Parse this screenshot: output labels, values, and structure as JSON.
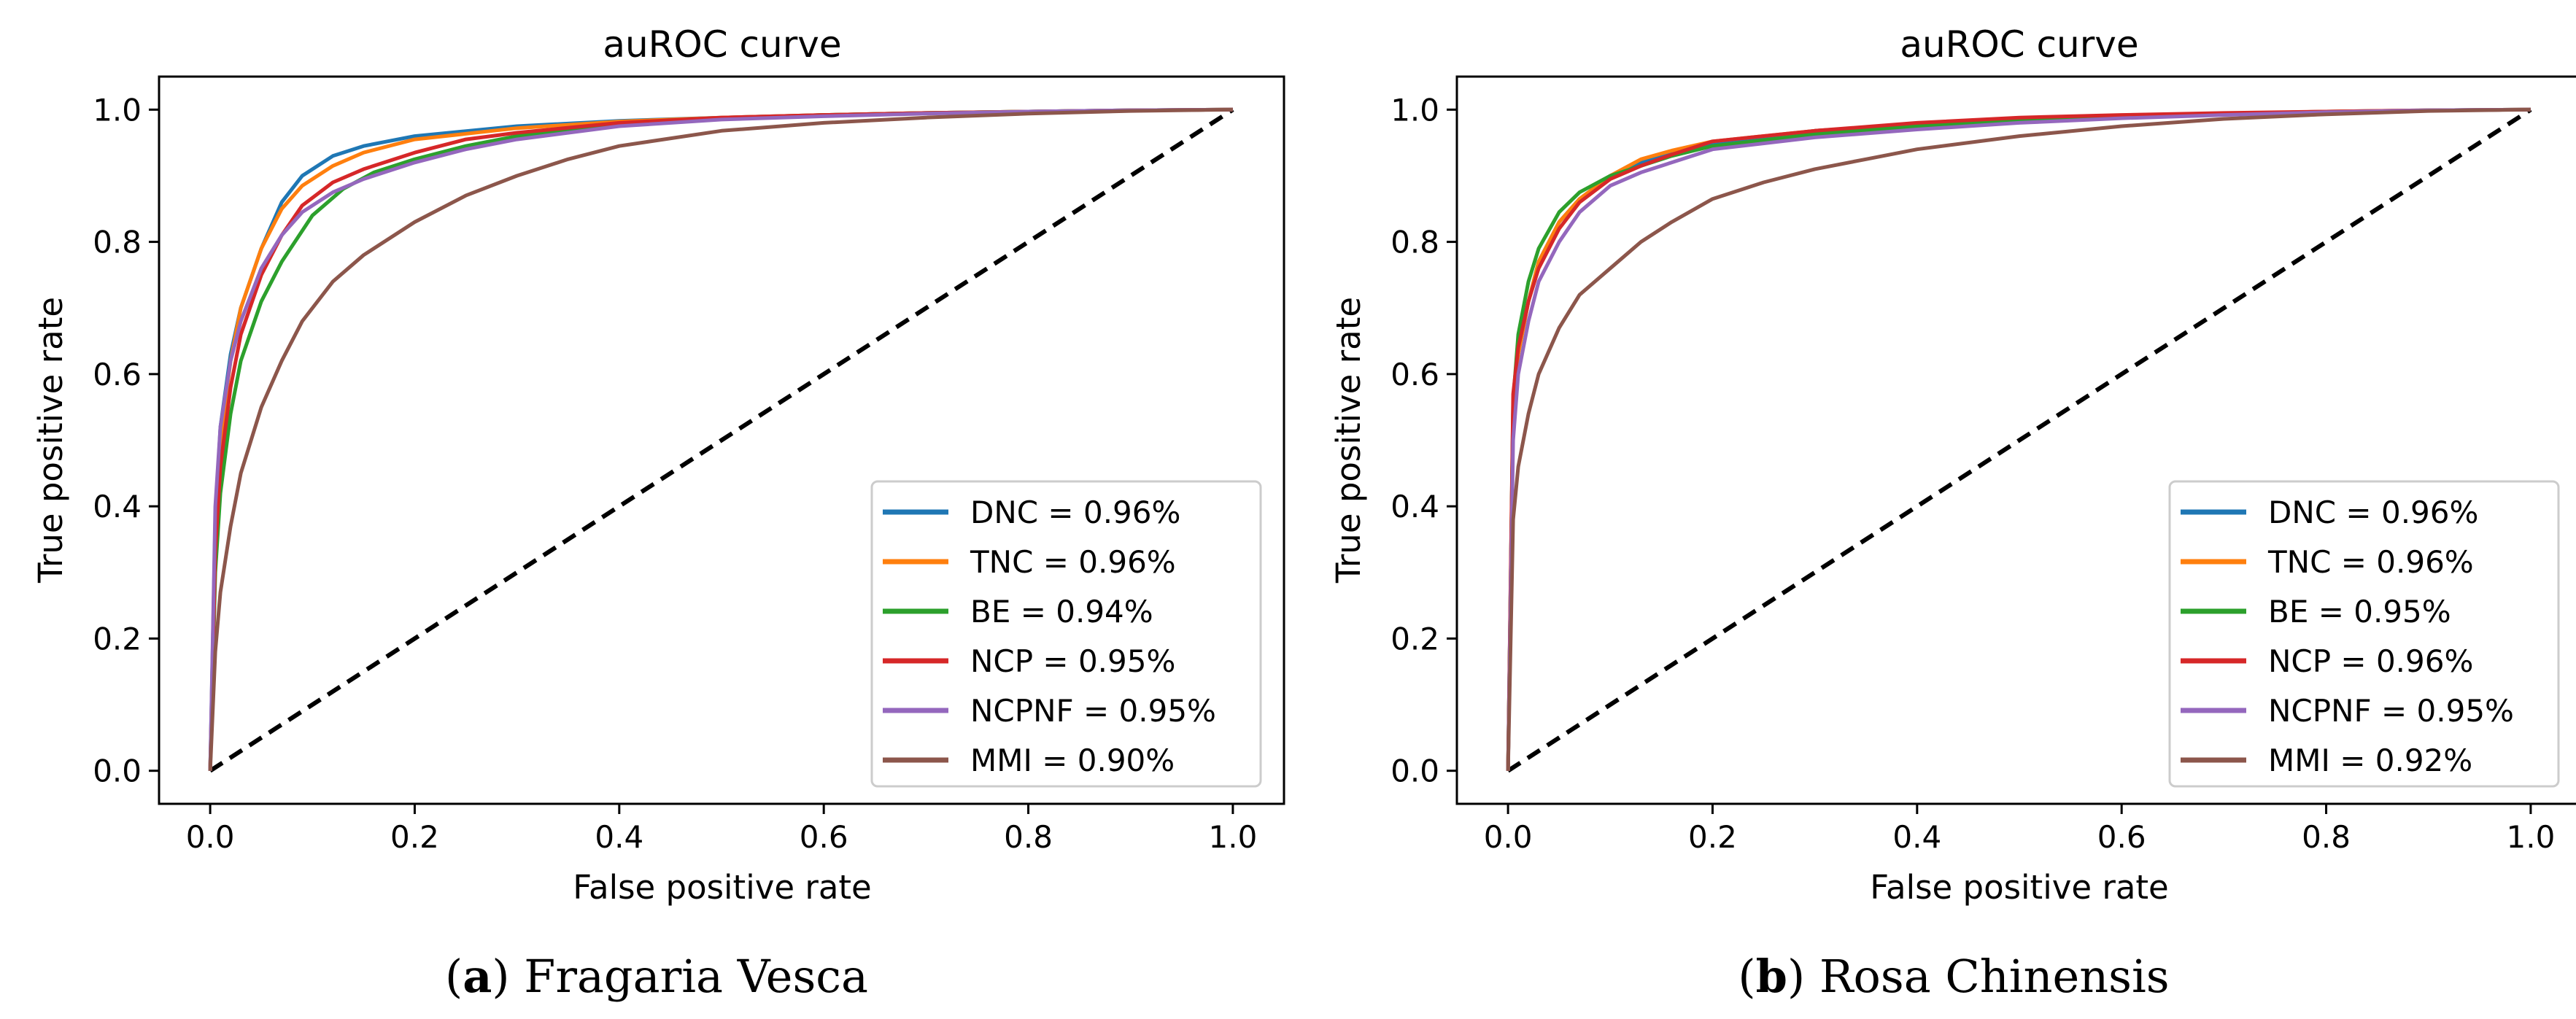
{
  "chart_data": [
    {
      "type": "line",
      "caption_letter": "a",
      "caption_text": "Fragaria Vesca",
      "title": "auROC curve",
      "xlabel": "False positive rate",
      "ylabel": "True positive rate",
      "xlim": [
        -0.05,
        1.05
      ],
      "ylim": [
        -0.05,
        1.05
      ],
      "xticks": [
        "0.0",
        "0.2",
        "0.4",
        "0.6",
        "0.8",
        "1.0"
      ],
      "yticks": [
        "0.0",
        "0.2",
        "0.4",
        "0.6",
        "0.8",
        "1.0"
      ],
      "legend_position": "lower-right",
      "diagonal": {
        "x": [
          0,
          1
        ],
        "y": [
          0,
          1
        ],
        "style": "dashed",
        "color": "#000000"
      },
      "series": [
        {
          "name": "DNC",
          "label": "DNC = 0.96%",
          "color": "#1f77b4",
          "x": [
            0,
            0.005,
            0.01,
            0.02,
            0.03,
            0.05,
            0.07,
            0.09,
            0.12,
            0.15,
            0.2,
            0.3,
            0.4,
            0.5,
            0.6,
            0.7,
            0.8,
            0.9,
            1.0
          ],
          "y": [
            0,
            0.38,
            0.52,
            0.63,
            0.7,
            0.79,
            0.86,
            0.9,
            0.93,
            0.945,
            0.96,
            0.975,
            0.983,
            0.988,
            0.992,
            0.995,
            0.997,
            0.999,
            1.0
          ]
        },
        {
          "name": "TNC",
          "label": "TNC = 0.96%",
          "color": "#ff7f0e",
          "x": [
            0,
            0.005,
            0.01,
            0.02,
            0.03,
            0.05,
            0.07,
            0.09,
            0.12,
            0.15,
            0.2,
            0.3,
            0.4,
            0.5,
            0.6,
            0.7,
            0.8,
            0.9,
            1.0
          ],
          "y": [
            0,
            0.36,
            0.5,
            0.62,
            0.7,
            0.79,
            0.85,
            0.885,
            0.915,
            0.935,
            0.955,
            0.972,
            0.982,
            0.988,
            0.992,
            0.995,
            0.997,
            0.999,
            1.0
          ]
        },
        {
          "name": "BE",
          "label": "BE = 0.94%",
          "color": "#2ca02c",
          "x": [
            0,
            0.005,
            0.01,
            0.02,
            0.03,
            0.05,
            0.07,
            0.1,
            0.13,
            0.16,
            0.2,
            0.25,
            0.3,
            0.4,
            0.5,
            0.6,
            0.7,
            0.8,
            0.9,
            1.0
          ],
          "y": [
            0,
            0.3,
            0.42,
            0.54,
            0.62,
            0.71,
            0.77,
            0.84,
            0.88,
            0.905,
            0.925,
            0.945,
            0.96,
            0.978,
            0.987,
            0.992,
            0.995,
            0.997,
            0.999,
            1.0
          ]
        },
        {
          "name": "NCP",
          "label": "NCP = 0.95%",
          "color": "#d62728",
          "x": [
            0,
            0.005,
            0.01,
            0.02,
            0.03,
            0.05,
            0.07,
            0.09,
            0.12,
            0.15,
            0.2,
            0.25,
            0.3,
            0.4,
            0.5,
            0.6,
            0.7,
            0.8,
            0.9,
            1.0
          ],
          "y": [
            0,
            0.33,
            0.46,
            0.58,
            0.66,
            0.75,
            0.81,
            0.855,
            0.89,
            0.91,
            0.935,
            0.955,
            0.965,
            0.98,
            0.988,
            0.992,
            0.995,
            0.997,
            0.999,
            1.0
          ]
        },
        {
          "name": "NCPNF",
          "label": "NCPNF = 0.95%",
          "color": "#9467bd",
          "x": [
            0,
            0.005,
            0.01,
            0.02,
            0.03,
            0.05,
            0.07,
            0.09,
            0.12,
            0.15,
            0.2,
            0.25,
            0.3,
            0.4,
            0.5,
            0.6,
            0.7,
            0.8,
            0.9,
            1.0
          ],
          "y": [
            0,
            0.4,
            0.52,
            0.62,
            0.68,
            0.76,
            0.81,
            0.845,
            0.875,
            0.895,
            0.92,
            0.94,
            0.955,
            0.975,
            0.985,
            0.99,
            0.994,
            0.997,
            0.999,
            1.0
          ]
        },
        {
          "name": "MMI",
          "label": "MMI = 0.90%",
          "color": "#8c564b",
          "x": [
            0,
            0.005,
            0.01,
            0.02,
            0.03,
            0.05,
            0.07,
            0.09,
            0.12,
            0.15,
            0.2,
            0.25,
            0.3,
            0.35,
            0.4,
            0.5,
            0.6,
            0.7,
            0.8,
            0.9,
            1.0
          ],
          "y": [
            0,
            0.18,
            0.27,
            0.37,
            0.45,
            0.55,
            0.62,
            0.68,
            0.74,
            0.78,
            0.83,
            0.87,
            0.9,
            0.925,
            0.945,
            0.968,
            0.98,
            0.988,
            0.994,
            0.998,
            1.0
          ]
        }
      ]
    },
    {
      "type": "line",
      "caption_letter": "b",
      "caption_text": "Rosa Chinensis",
      "title": "auROC curve",
      "xlabel": "False positive rate",
      "ylabel": "True positive rate",
      "xlim": [
        -0.05,
        1.05
      ],
      "ylim": [
        -0.05,
        1.05
      ],
      "xticks": [
        "0.0",
        "0.2",
        "0.4",
        "0.6",
        "0.8",
        "1.0"
      ],
      "yticks": [
        "0.0",
        "0.2",
        "0.4",
        "0.6",
        "0.8",
        "1.0"
      ],
      "legend_position": "lower-right",
      "diagonal": {
        "x": [
          0,
          1
        ],
        "y": [
          0,
          1
        ],
        "style": "dashed",
        "color": "#000000"
      },
      "series": [
        {
          "name": "DNC",
          "label": "DNC = 0.96%",
          "color": "#1f77b4",
          "x": [
            0,
            0.005,
            0.01,
            0.02,
            0.03,
            0.05,
            0.07,
            0.1,
            0.13,
            0.16,
            0.2,
            0.3,
            0.4,
            0.5,
            0.6,
            0.7,
            0.8,
            0.9,
            1.0
          ],
          "y": [
            0,
            0.55,
            0.63,
            0.71,
            0.77,
            0.83,
            0.865,
            0.9,
            0.92,
            0.935,
            0.95,
            0.968,
            0.978,
            0.985,
            0.99,
            0.994,
            0.997,
            0.999,
            1.0
          ]
        },
        {
          "name": "TNC",
          "label": "TNC = 0.96%",
          "color": "#ff7f0e",
          "x": [
            0,
            0.005,
            0.01,
            0.02,
            0.03,
            0.05,
            0.07,
            0.1,
            0.13,
            0.16,
            0.2,
            0.3,
            0.4,
            0.5,
            0.6,
            0.7,
            0.8,
            0.9,
            1.0
          ],
          "y": [
            0,
            0.55,
            0.63,
            0.71,
            0.77,
            0.83,
            0.865,
            0.9,
            0.925,
            0.938,
            0.952,
            0.968,
            0.978,
            0.985,
            0.99,
            0.994,
            0.997,
            0.999,
            1.0
          ]
        },
        {
          "name": "BE",
          "label": "BE = 0.95%",
          "color": "#2ca02c",
          "x": [
            0,
            0.005,
            0.01,
            0.02,
            0.03,
            0.05,
            0.07,
            0.1,
            0.13,
            0.16,
            0.2,
            0.3,
            0.4,
            0.5,
            0.6,
            0.7,
            0.8,
            0.9,
            1.0
          ],
          "y": [
            0,
            0.56,
            0.66,
            0.74,
            0.79,
            0.845,
            0.875,
            0.9,
            0.915,
            0.93,
            0.945,
            0.963,
            0.975,
            0.983,
            0.989,
            0.993,
            0.996,
            0.999,
            1.0
          ]
        },
        {
          "name": "NCP",
          "label": "NCP = 0.96%",
          "color": "#d62728",
          "x": [
            0,
            0.005,
            0.01,
            0.02,
            0.03,
            0.05,
            0.07,
            0.1,
            0.13,
            0.16,
            0.2,
            0.3,
            0.4,
            0.5,
            0.6,
            0.7,
            0.8,
            0.9,
            1.0
          ],
          "y": [
            0,
            0.57,
            0.64,
            0.71,
            0.76,
            0.82,
            0.86,
            0.895,
            0.915,
            0.932,
            0.952,
            0.968,
            0.98,
            0.988,
            0.992,
            0.995,
            0.997,
            0.999,
            1.0
          ]
        },
        {
          "name": "NCPNF",
          "label": "NCPNF = 0.95%",
          "color": "#9467bd",
          "x": [
            0,
            0.005,
            0.01,
            0.02,
            0.03,
            0.05,
            0.07,
            0.1,
            0.13,
            0.16,
            0.2,
            0.3,
            0.4,
            0.5,
            0.6,
            0.7,
            0.8,
            0.9,
            1.0
          ],
          "y": [
            0,
            0.5,
            0.6,
            0.68,
            0.74,
            0.8,
            0.845,
            0.885,
            0.905,
            0.92,
            0.94,
            0.958,
            0.97,
            0.98,
            0.987,
            0.992,
            0.996,
            0.999,
            1.0
          ]
        },
        {
          "name": "MMI",
          "label": "MMI = 0.92%",
          "color": "#8c564b",
          "x": [
            0,
            0.005,
            0.01,
            0.02,
            0.03,
            0.05,
            0.07,
            0.1,
            0.13,
            0.16,
            0.2,
            0.25,
            0.3,
            0.35,
            0.4,
            0.5,
            0.6,
            0.7,
            0.8,
            0.9,
            1.0
          ],
          "y": [
            0,
            0.38,
            0.46,
            0.54,
            0.6,
            0.67,
            0.72,
            0.76,
            0.8,
            0.83,
            0.865,
            0.89,
            0.91,
            0.925,
            0.94,
            0.96,
            0.975,
            0.986,
            0.993,
            0.998,
            1.0
          ]
        }
      ]
    }
  ]
}
